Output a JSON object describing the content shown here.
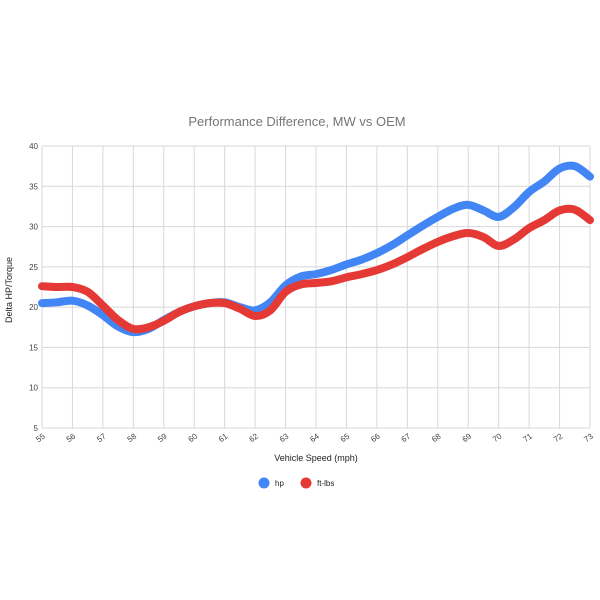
{
  "chart_data": {
    "type": "line",
    "title": "Performance Difference, MW vs OEM",
    "xlabel": "Vehicle Speed (mph)",
    "ylabel": "Delta HP/Torque",
    "x": [
      55,
      55.5,
      56,
      56.5,
      57,
      57.5,
      58,
      58.5,
      59,
      59.5,
      60,
      60.5,
      61,
      61.5,
      62,
      62.5,
      63,
      63.5,
      64,
      64.5,
      65,
      65.5,
      66,
      66.5,
      67,
      67.5,
      68,
      68.5,
      69,
      69.5,
      70,
      70.5,
      71,
      71.5,
      72,
      72.5,
      73
    ],
    "series": [
      {
        "name": "hp",
        "color": "#4285F4",
        "values": [
          20.5,
          20.6,
          20.8,
          20.2,
          19.0,
          17.6,
          16.9,
          17.3,
          18.4,
          19.4,
          20.1,
          20.5,
          20.6,
          20.0,
          19.6,
          20.6,
          22.7,
          23.8,
          24.1,
          24.6,
          25.3,
          25.9,
          26.7,
          27.7,
          28.9,
          30.1,
          31.2,
          32.2,
          32.7,
          32.0,
          31.2,
          32.4,
          34.3,
          35.6,
          37.2,
          37.5,
          36.2
        ]
      },
      {
        "name": "ft-lbs",
        "color": "#E53935",
        "values": [
          22.6,
          22.5,
          22.5,
          21.9,
          20.2,
          18.4,
          17.3,
          17.5,
          18.3,
          19.4,
          20.1,
          20.5,
          20.5,
          19.8,
          18.9,
          19.6,
          21.9,
          22.8,
          23.0,
          23.2,
          23.7,
          24.1,
          24.6,
          25.3,
          26.2,
          27.2,
          28.1,
          28.8,
          29.2,
          28.7,
          27.6,
          28.4,
          29.8,
          30.8,
          32.0,
          32.1,
          30.8
        ]
      }
    ],
    "xticks": [
      "55",
      "56",
      "57",
      "58",
      "59",
      "60",
      "61",
      "62",
      "63",
      "64",
      "65",
      "66",
      "67",
      "68",
      "69",
      "70",
      "71",
      "72",
      "73"
    ],
    "yticks": [
      "5",
      "10",
      "15",
      "20",
      "25",
      "30",
      "35",
      "40"
    ],
    "xlim": [
      55,
      73
    ],
    "ylim": [
      5,
      40
    ],
    "grid": true,
    "legend_position": "bottom"
  }
}
